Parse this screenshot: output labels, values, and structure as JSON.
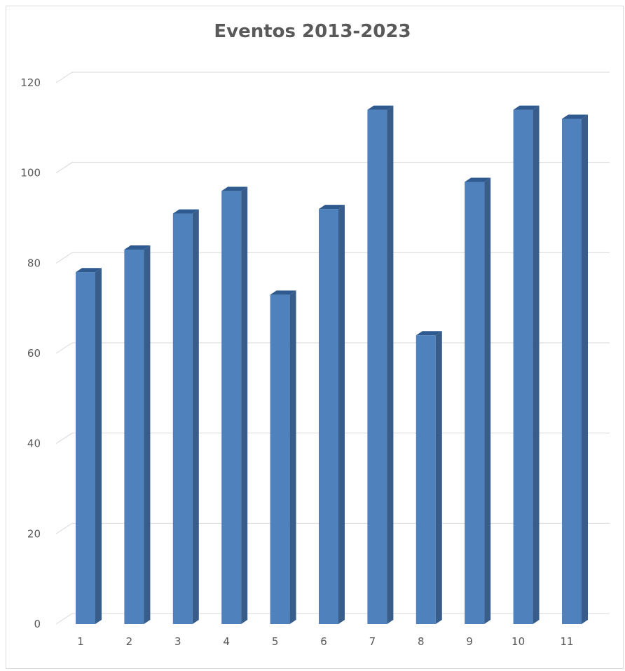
{
  "chart_data": {
    "type": "bar",
    "title": "Eventos 2013-2023",
    "categories": [
      "1",
      "2",
      "3",
      "4",
      "5",
      "6",
      "7",
      "8",
      "9",
      "10",
      "11"
    ],
    "values": [
      78,
      83,
      91,
      96,
      73,
      92,
      114,
      64,
      98,
      114,
      112
    ],
    "ylim": [
      0,
      120
    ],
    "yticks": [
      "0",
      "20",
      "40",
      "60",
      "80",
      "100",
      "120"
    ],
    "grid": true,
    "legend": "none",
    "colors": {
      "bar_front": "#4f81bd",
      "bar_side": "#385d8a",
      "bar_top": "#2f5a8f",
      "gridline": "#d9d9d9",
      "text": "#595959"
    }
  }
}
